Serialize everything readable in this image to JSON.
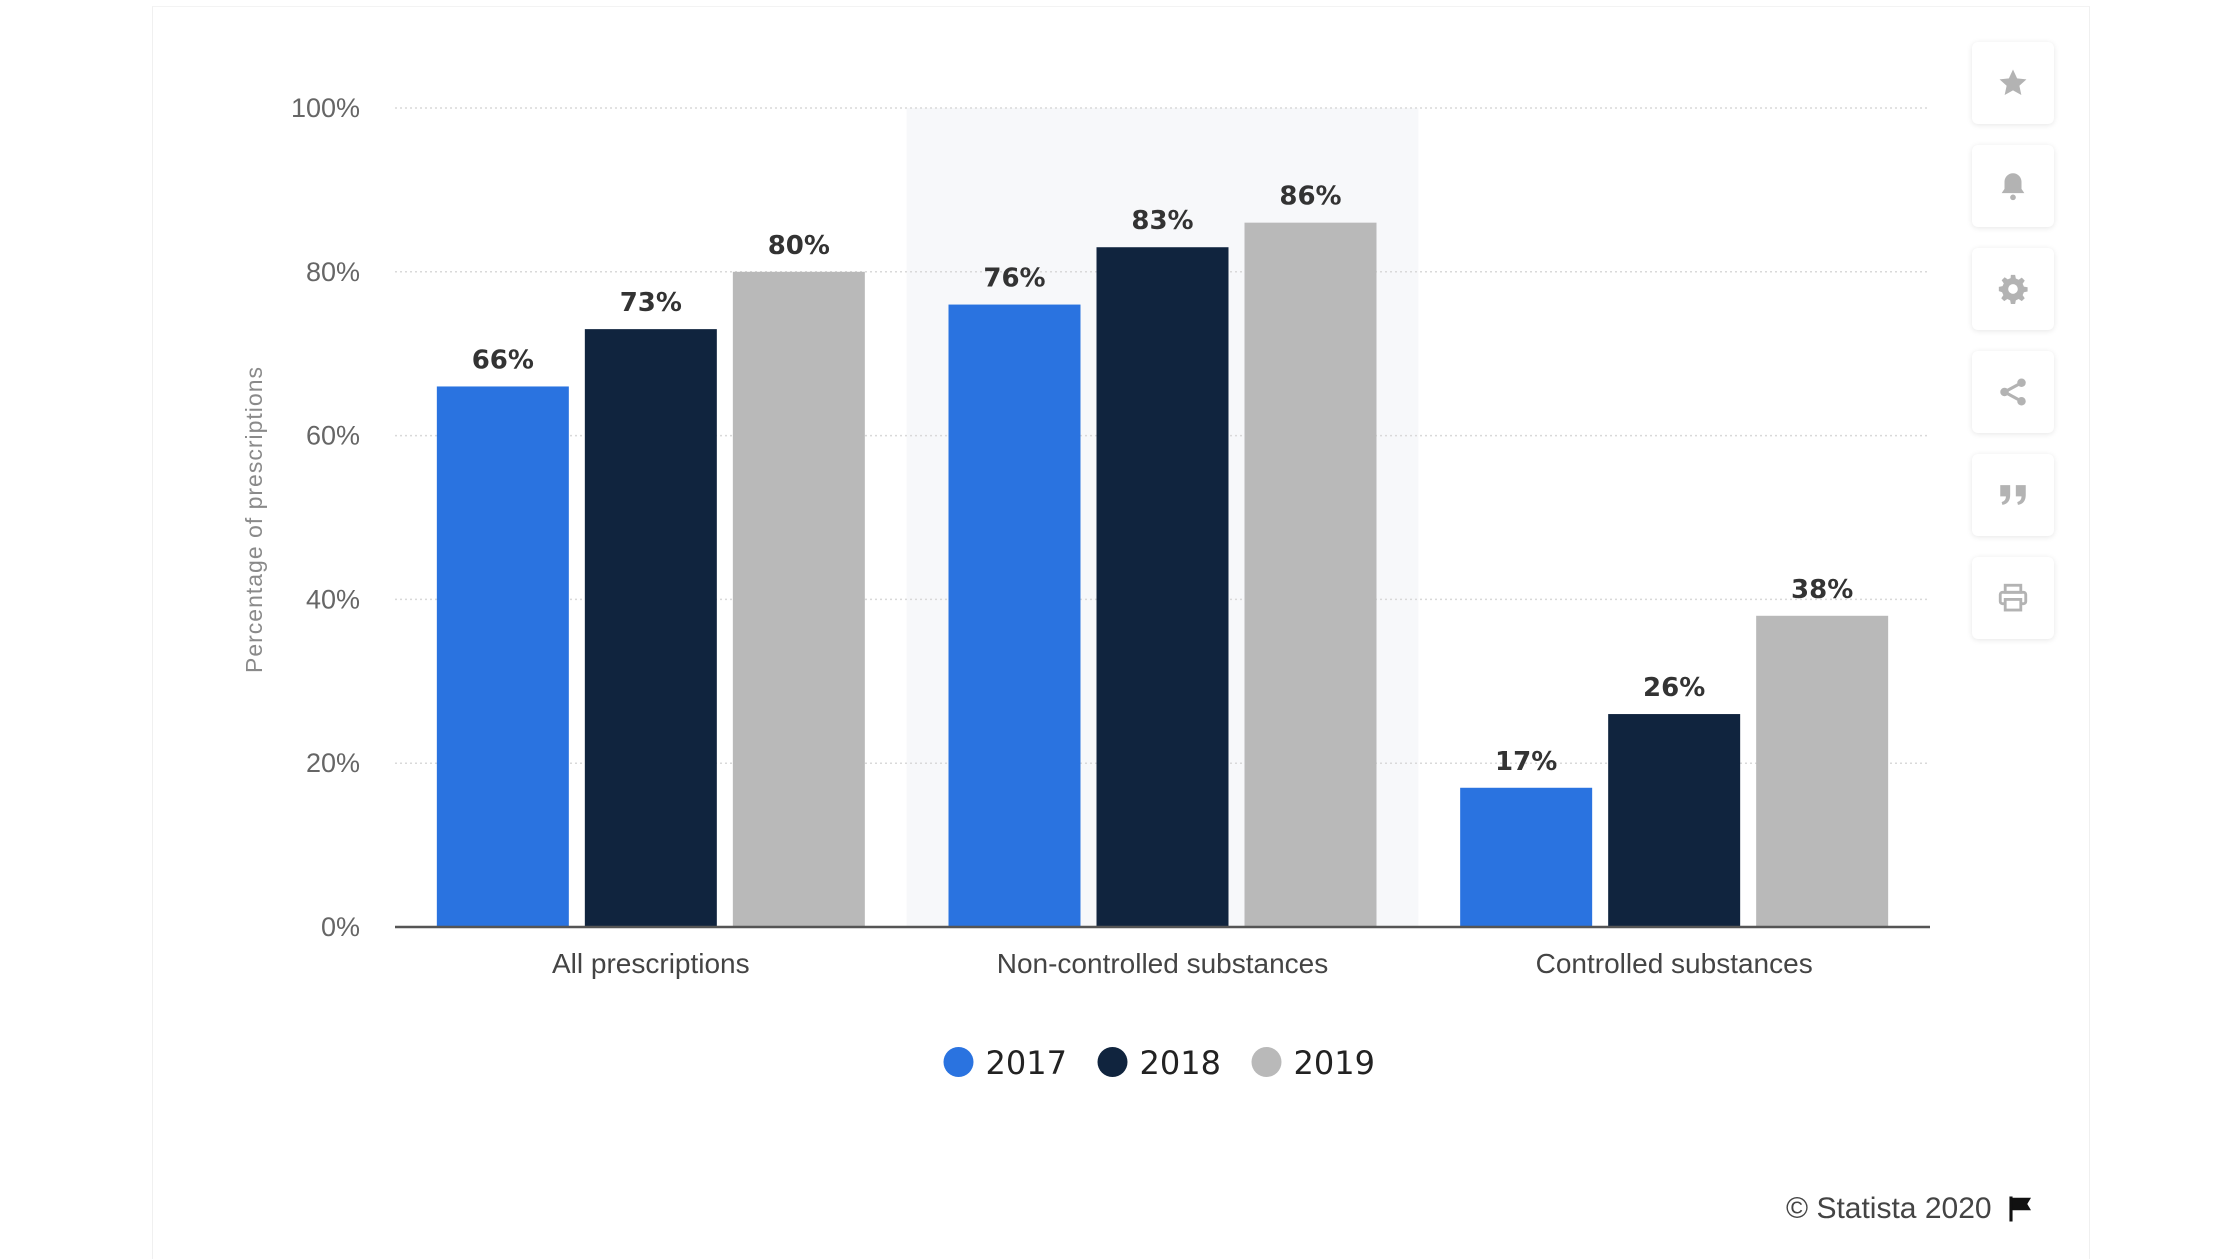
{
  "chart_data": {
    "type": "bar",
    "title": "",
    "xlabel": "",
    "ylabel": "Percentage of prescriptions",
    "ylim": [
      0,
      100
    ],
    "y_ticks": [
      "0%",
      "20%",
      "40%",
      "60%",
      "80%",
      "100%"
    ],
    "y_tick_values": [
      0,
      20,
      40,
      60,
      80,
      100
    ],
    "categories": [
      "All prescriptions",
      "Non-controlled substances",
      "Controlled substances"
    ],
    "highlighted_category": "Non-controlled substances",
    "series": [
      {
        "name": "2017",
        "color": "#2a73e0",
        "values": [
          66,
          76,
          17
        ],
        "labels": [
          "66%",
          "76%",
          "17%"
        ]
      },
      {
        "name": "2018",
        "color": "#10243e",
        "values": [
          73,
          83,
          26
        ],
        "labels": [
          "73%",
          "83%",
          "26%"
        ]
      },
      {
        "name": "2019",
        "color": "#b9b9b9",
        "values": [
          80,
          86,
          38
        ],
        "labels": [
          "80%",
          "86%",
          "38%"
        ]
      }
    ],
    "legend_position": "bottom-center",
    "grid": true
  },
  "toolbar": {
    "buttons": [
      {
        "name": "favorite",
        "icon": "star-icon"
      },
      {
        "name": "notifications",
        "icon": "bell-icon"
      },
      {
        "name": "settings",
        "icon": "gear-icon"
      },
      {
        "name": "share",
        "icon": "share-icon"
      },
      {
        "name": "cite",
        "icon": "quote-icon"
      },
      {
        "name": "print",
        "icon": "print-icon"
      }
    ],
    "icon_color": "#b3b3b3"
  },
  "footer": {
    "credit": "© Statista 2020",
    "flag_icon": "flag-icon"
  }
}
